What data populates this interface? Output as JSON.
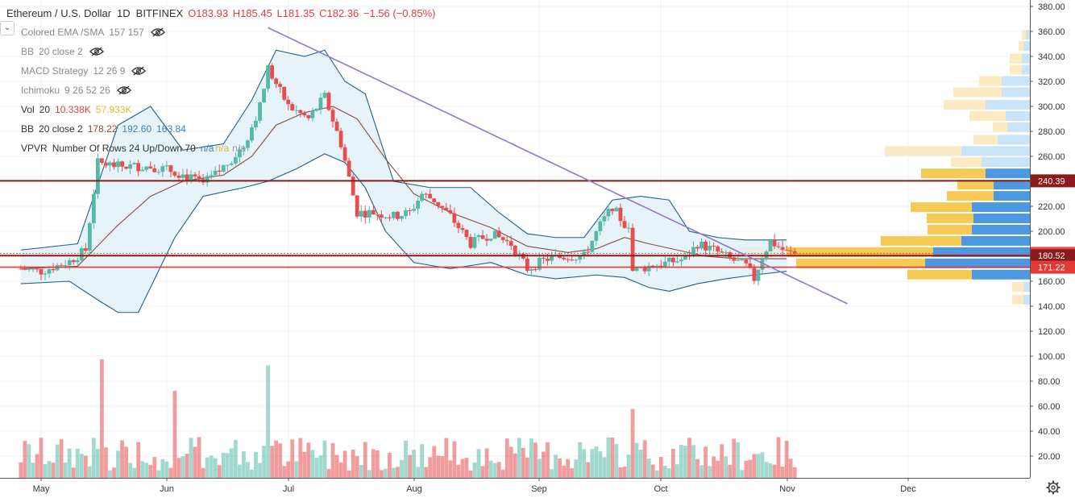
{
  "header": {
    "symbol": "Ethereum / U.S. Dollar",
    "interval": "1D",
    "exchange": "BITFINEX",
    "open": "O183.93",
    "high": "H185.45",
    "low": "L181.35",
    "close": "C182.36",
    "change": "−1.56 (−0.85%)"
  },
  "indicators": [
    {
      "name": "Colored EMA /SMA",
      "params": "157 157",
      "hidden": true
    },
    {
      "name": "BB",
      "params": "20 close 2",
      "hidden": true
    },
    {
      "name": "MACD Strategy",
      "params": "12 26 9",
      "hidden": true
    },
    {
      "name": "Ichimoku",
      "params": "9 26 52 26",
      "hidden": true
    }
  ],
  "vol_indicator": {
    "name": "Vol",
    "params": "20",
    "v1": "10.338K",
    "v2": "57.933K"
  },
  "bb_indicator": {
    "name": "BB",
    "params": "20 close 2",
    "v1": "178.22",
    "v2": "192.60",
    "v3": "163.84"
  },
  "vpvr_indicator": {
    "name": "VPVR",
    "params": "Number Of Rows 24 Up/Down 70",
    "v1": "n/a",
    "v2": "n/a",
    "v3": "n/a"
  },
  "colors": {
    "up": "#53b9a8",
    "down": "#e84c4c",
    "trendline": "#9575cd",
    "hline_dark": "#8b1a1a",
    "hline_red": "#e53935",
    "bb_fill": "#e3f2f7",
    "bb_band": "#1f5f8b",
    "bb_basis": "#8b4a3a",
    "vpvr_up": "#2e86de",
    "vpvr_down": "#f5c542"
  },
  "chart_data": {
    "type": "candlestick",
    "y_ticks": [
      "380.00",
      "360.00",
      "340.00",
      "320.00",
      "300.00",
      "280.00",
      "260.00",
      "240.00",
      "220.00",
      "200.00",
      "180.00",
      "160.00",
      "140.00",
      "120.00",
      "100.00",
      "80.00",
      "60.00",
      "40.00",
      "20.00"
    ],
    "x_ticks": [
      "May",
      "Jun",
      "Jul",
      "Aug",
      "Sep",
      "Oct",
      "Nov",
      "Dec"
    ],
    "ylim": [
      0,
      382
    ],
    "price_labels": [
      {
        "value": 240.39,
        "label": "240.39",
        "color": "#8b1a1a"
      },
      {
        "value": 182.36,
        "label": "182.36",
        "color": "#e84c4c"
      },
      {
        "value": 180.52,
        "label": "180.52",
        "color": "#8b1a1a"
      },
      {
        "value": 171.22,
        "label": "171.22",
        "color": "#e53935"
      }
    ],
    "horizontal_lines": [
      240.39,
      180.52,
      171.22
    ],
    "trendline": {
      "from": [
        "Jun 26",
        363
      ],
      "to": [
        "Nov 16",
        142
      ]
    },
    "price_path": [
      [
        "Apr 26",
        170
      ],
      [
        "May 1",
        168
      ],
      [
        "May 8",
        176
      ],
      [
        "May 12",
        185
      ],
      [
        "May 15",
        255
      ],
      [
        "May 20",
        252
      ],
      [
        "May 28",
        252
      ],
      [
        "Jun 3",
        248
      ],
      [
        "Jun 10",
        238
      ],
      [
        "Jun 14",
        248
      ],
      [
        "Jun 20",
        268
      ],
      [
        "Jun 24",
        300
      ],
      [
        "Jun 26",
        330
      ],
      [
        "Jul 1",
        300
      ],
      [
        "Jul 6",
        290
      ],
      [
        "Jul 10",
        308
      ],
      [
        "Jul 14",
        270
      ],
      [
        "Jul 18",
        215
      ],
      [
        "Jul 22",
        215
      ],
      [
        "Jul 27",
        212
      ],
      [
        "Jul 31",
        215
      ],
      [
        "Aug 3",
        230
      ],
      [
        "Aug 6",
        225
      ],
      [
        "Aug 10",
        212
      ],
      [
        "Aug 15",
        190
      ],
      [
        "Aug 20",
        198
      ],
      [
        "Aug 25",
        190
      ],
      [
        "Aug 29",
        170
      ],
      [
        "Sep 3",
        178
      ],
      [
        "Sep 8",
        180
      ],
      [
        "Sep 12",
        180
      ],
      [
        "Sep 16",
        205
      ],
      [
        "Sep 19",
        220
      ],
      [
        "Sep 23",
        200
      ],
      [
        "Sep 24",
        168
      ],
      [
        "Sep 28",
        172
      ],
      [
        "Oct 3",
        175
      ],
      [
        "Oct 7",
        178
      ],
      [
        "Oct 10",
        190
      ],
      [
        "Oct 14",
        185
      ],
      [
        "Oct 18",
        178
      ],
      [
        "Oct 22",
        172
      ],
      [
        "Oct 24",
        162
      ],
      [
        "Oct 26",
        180
      ],
      [
        "Oct 28",
        192
      ],
      [
        "Nov 1",
        183
      ],
      [
        "Nov 3",
        182.36
      ]
    ],
    "bb_upper": [
      [
        "Apr 26",
        185
      ],
      [
        "May 10",
        190
      ],
      [
        "May 20",
        285
      ],
      [
        "May 28",
        300
      ],
      [
        "Jun 5",
        265
      ],
      [
        "Jun 15",
        270
      ],
      [
        "Jun 22",
        305
      ],
      [
        "Jun 28",
        345
      ],
      [
        "Jul 5",
        340
      ],
      [
        "Jul 10",
        345
      ],
      [
        "Jul 15",
        320
      ],
      [
        "Jul 20",
        310
      ],
      [
        "Jul 27",
        240
      ],
      [
        "Aug 5",
        235
      ],
      [
        "Aug 15",
        235
      ],
      [
        "Aug 22",
        215
      ],
      [
        "Aug 29",
        198
      ],
      [
        "Sep 5",
        195
      ],
      [
        "Sep 12",
        195
      ],
      [
        "Sep 19",
        225
      ],
      [
        "Sep 26",
        228
      ],
      [
        "Oct 3",
        225
      ],
      [
        "Oct 8",
        200
      ],
      [
        "Oct 15",
        195
      ],
      [
        "Oct 22",
        193
      ],
      [
        "Nov 1",
        193
      ]
    ],
    "bb_lower": [
      [
        "Apr 26",
        158
      ],
      [
        "May 8",
        160
      ],
      [
        "May 15",
        145
      ],
      [
        "May 20",
        135
      ],
      [
        "May 25",
        135
      ],
      [
        "Jun 3",
        195
      ],
      [
        "Jun 10",
        228
      ],
      [
        "Jun 20",
        235
      ],
      [
        "Jun 26",
        240
      ],
      [
        "Jul 3",
        250
      ],
      [
        "Jul 10",
        262
      ],
      [
        "Jul 15",
        255
      ],
      [
        "Jul 20",
        235
      ],
      [
        "Jul 25",
        200
      ],
      [
        "Aug 1",
        175
      ],
      [
        "Aug 10",
        170
      ],
      [
        "Aug 20",
        175
      ],
      [
        "Aug 29",
        165
      ],
      [
        "Sep 5",
        162
      ],
      [
        "Sep 15",
        165
      ],
      [
        "Sep 22",
        163
      ],
      [
        "Sep 28",
        155
      ],
      [
        "Oct 3",
        152
      ],
      [
        "Oct 10",
        158
      ],
      [
        "Oct 17",
        162
      ],
      [
        "Oct 24",
        165
      ],
      [
        "Nov 1",
        168
      ]
    ],
    "bb_basis": [
      [
        "Apr 26",
        170
      ],
      [
        "May 10",
        172
      ],
      [
        "May 20",
        205
      ],
      [
        "May 28",
        228
      ],
      [
        "Jun 5",
        240
      ],
      [
        "Jun 15",
        245
      ],
      [
        "Jun 22",
        260
      ],
      [
        "Jun 28",
        285
      ],
      [
        "Jul 5",
        295
      ],
      [
        "Jul 12",
        300
      ],
      [
        "Jul 18",
        290
      ],
      [
        "Jul 25",
        258
      ],
      [
        "Aug 1",
        230
      ],
      [
        "Aug 10",
        215
      ],
      [
        "Aug 20",
        203
      ],
      [
        "Aug 29",
        188
      ],
      [
        "Sep 8",
        183
      ],
      [
        "Sep 15",
        186
      ],
      [
        "Sep 22",
        195
      ],
      [
        "Sep 28",
        190
      ],
      [
        "Oct 5",
        185
      ],
      [
        "Oct 12",
        180
      ],
      [
        "Oct 20",
        178
      ],
      [
        "Nov 1",
        178
      ]
    ],
    "volume_peaks": [
      {
        "date": "May 16",
        "value": 98
      },
      {
        "date": "Jun 26",
        "value": 93
      },
      {
        "date": "Jun 3",
        "value": 72
      },
      {
        "date": "Sep 24",
        "value": 57
      }
    ],
    "vpvr_rows": [
      {
        "price": 145,
        "up": 8,
        "down": 14
      },
      {
        "price": 155,
        "up": 8,
        "down": 14
      },
      {
        "price": 165,
        "up": 72,
        "down": 80
      },
      {
        "price": 174,
        "up": 130,
        "down": 160
      },
      {
        "price": 183,
        "up": 120,
        "down": 242
      },
      {
        "price": 192,
        "up": 85,
        "down": 100
      },
      {
        "price": 201,
        "up": 72,
        "down": 55
      },
      {
        "price": 210,
        "up": 70,
        "down": 58
      },
      {
        "price": 219,
        "up": 72,
        "down": 76
      },
      {
        "price": 228,
        "up": 45,
        "down": 58
      },
      {
        "price": 237,
        "up": 45,
        "down": 45
      },
      {
        "price": 246,
        "up": 55,
        "down": 80
      },
      {
        "price": 255,
        "up": 60,
        "down": 38
      },
      {
        "price": 264,
        "up": 85,
        "down": 95
      },
      {
        "price": 273,
        "up": 40,
        "down": 30
      },
      {
        "price": 283,
        "up": 28,
        "down": 18
      },
      {
        "price": 292,
        "up": 30,
        "down": 45
      },
      {
        "price": 301,
        "up": 55,
        "down": 52
      },
      {
        "price": 311,
        "up": 35,
        "down": 60
      },
      {
        "price": 320,
        "up": 35,
        "down": 28
      },
      {
        "price": 329,
        "up": 10,
        "down": 15
      },
      {
        "price": 338,
        "up": 10,
        "down": 15
      },
      {
        "price": 348,
        "up": 8,
        "down": 6
      },
      {
        "price": 357,
        "up": 5,
        "down": 5
      }
    ]
  }
}
